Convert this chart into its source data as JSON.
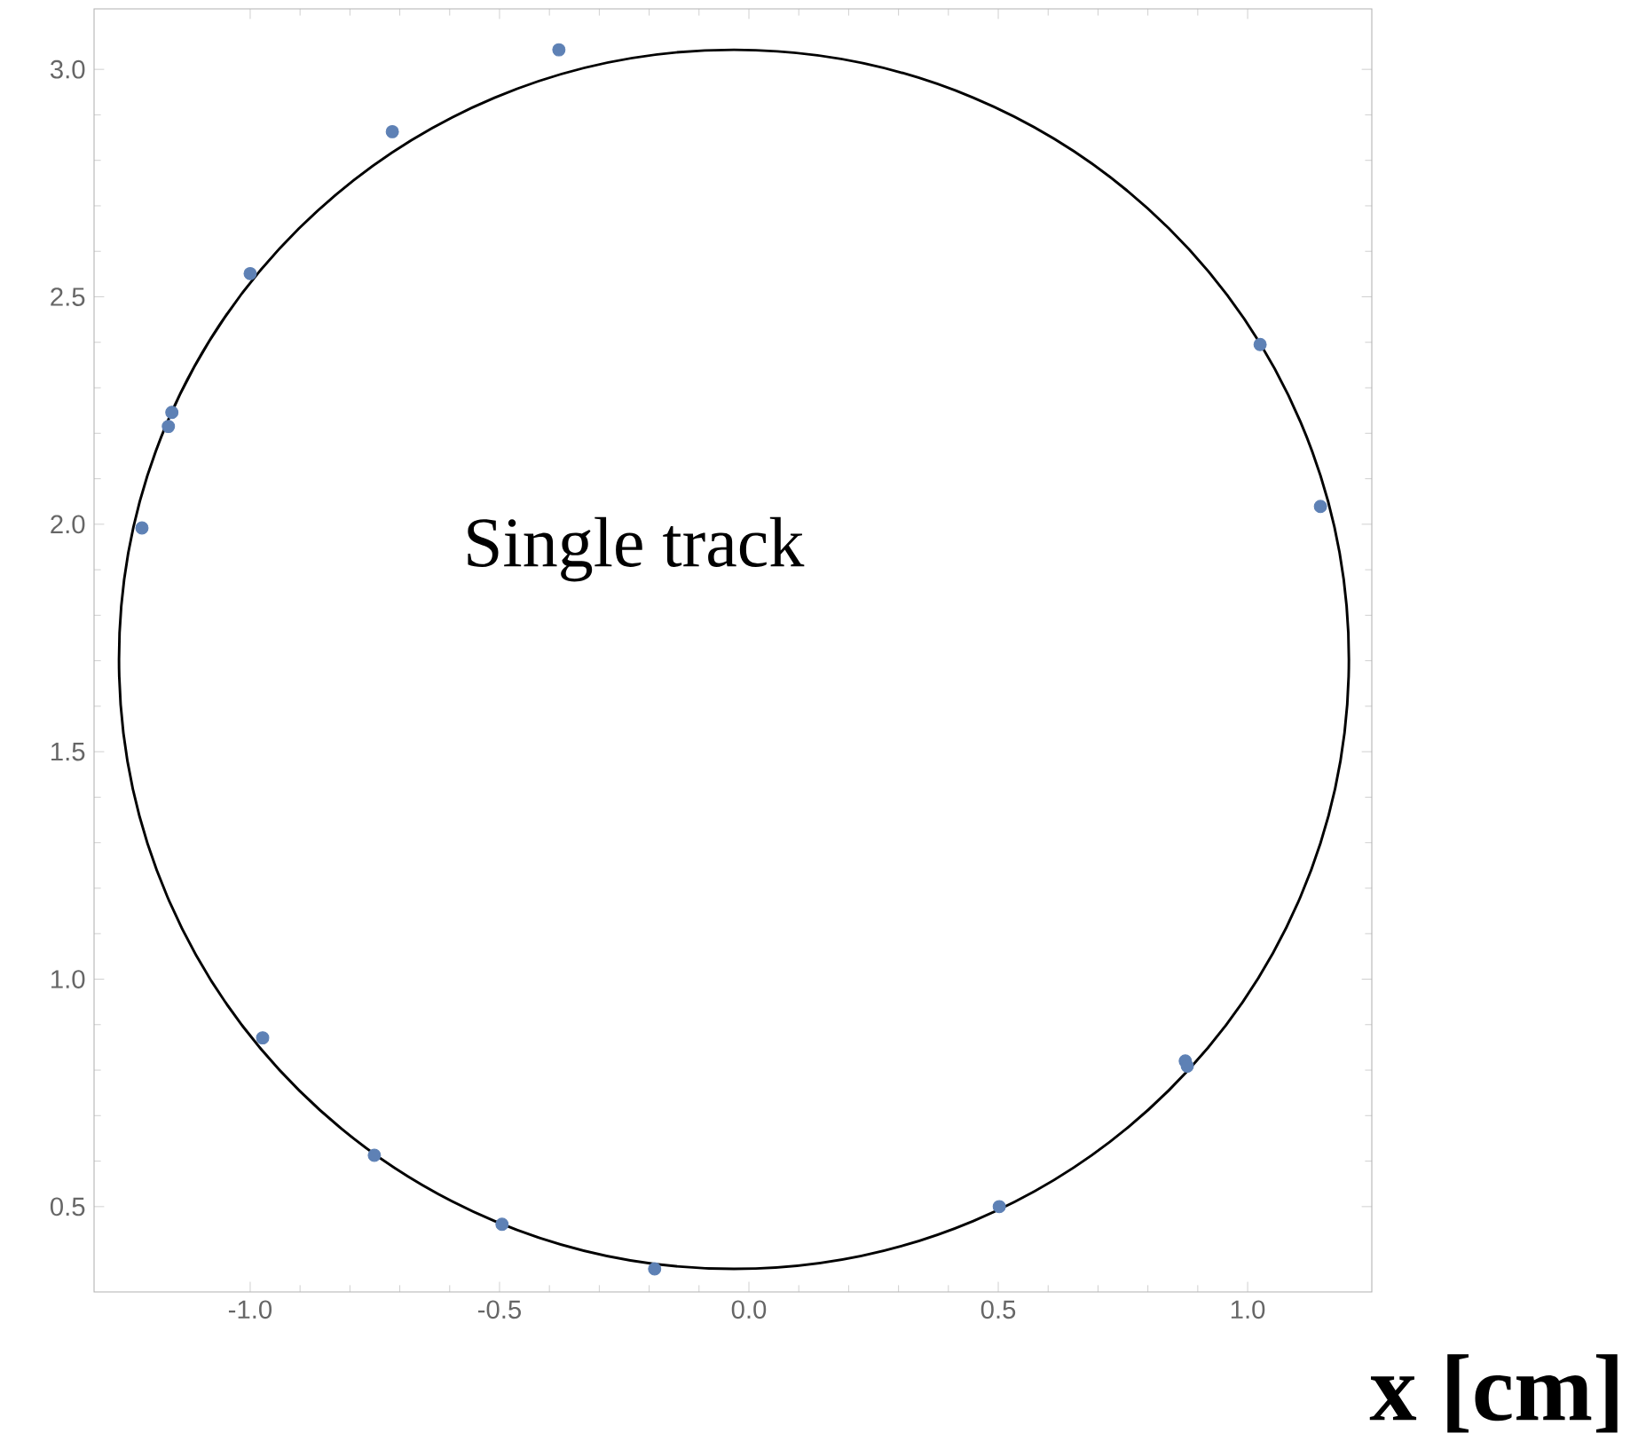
{
  "chart_data": {
    "type": "scatter",
    "xlabel": "x [cm]",
    "annotations": [
      "Single track"
    ],
    "xlim": [
      -1.313,
      1.249
    ],
    "ylim": [
      0.3125,
      3.133
    ],
    "xticks": [
      {
        "value": -1.0,
        "label": "-1.0"
      },
      {
        "value": -0.5,
        "label": "-0.5"
      },
      {
        "value": 0.0,
        "label": "0.0"
      },
      {
        "value": 0.5,
        "label": "0.5"
      },
      {
        "value": 1.0,
        "label": "1.0"
      }
    ],
    "yticks": [
      {
        "value": 0.5,
        "label": "0.5"
      },
      {
        "value": 1.0,
        "label": "1.0"
      },
      {
        "value": 1.5,
        "label": "1.5"
      },
      {
        "value": 2.0,
        "label": "2.0"
      },
      {
        "value": 2.5,
        "label": "2.5"
      },
      {
        "value": 3.0,
        "label": "3.0"
      }
    ],
    "grid": false,
    "series": [
      {
        "color": "#5e81b5",
        "x": [
          -0.381,
          -0.715,
          -1.0,
          -1.157,
          -1.164,
          -1.217,
          -0.975,
          -0.751,
          -0.495,
          -0.189,
          0.502,
          0.875,
          0.879,
          1.025,
          1.146
        ],
        "values": [
          3.043,
          2.863,
          2.551,
          2.246,
          2.215,
          1.992,
          0.871,
          0.613,
          0.461,
          0.363,
          0.5,
          0.82,
          0.809,
          2.395,
          2.039
        ]
      }
    ]
  }
}
